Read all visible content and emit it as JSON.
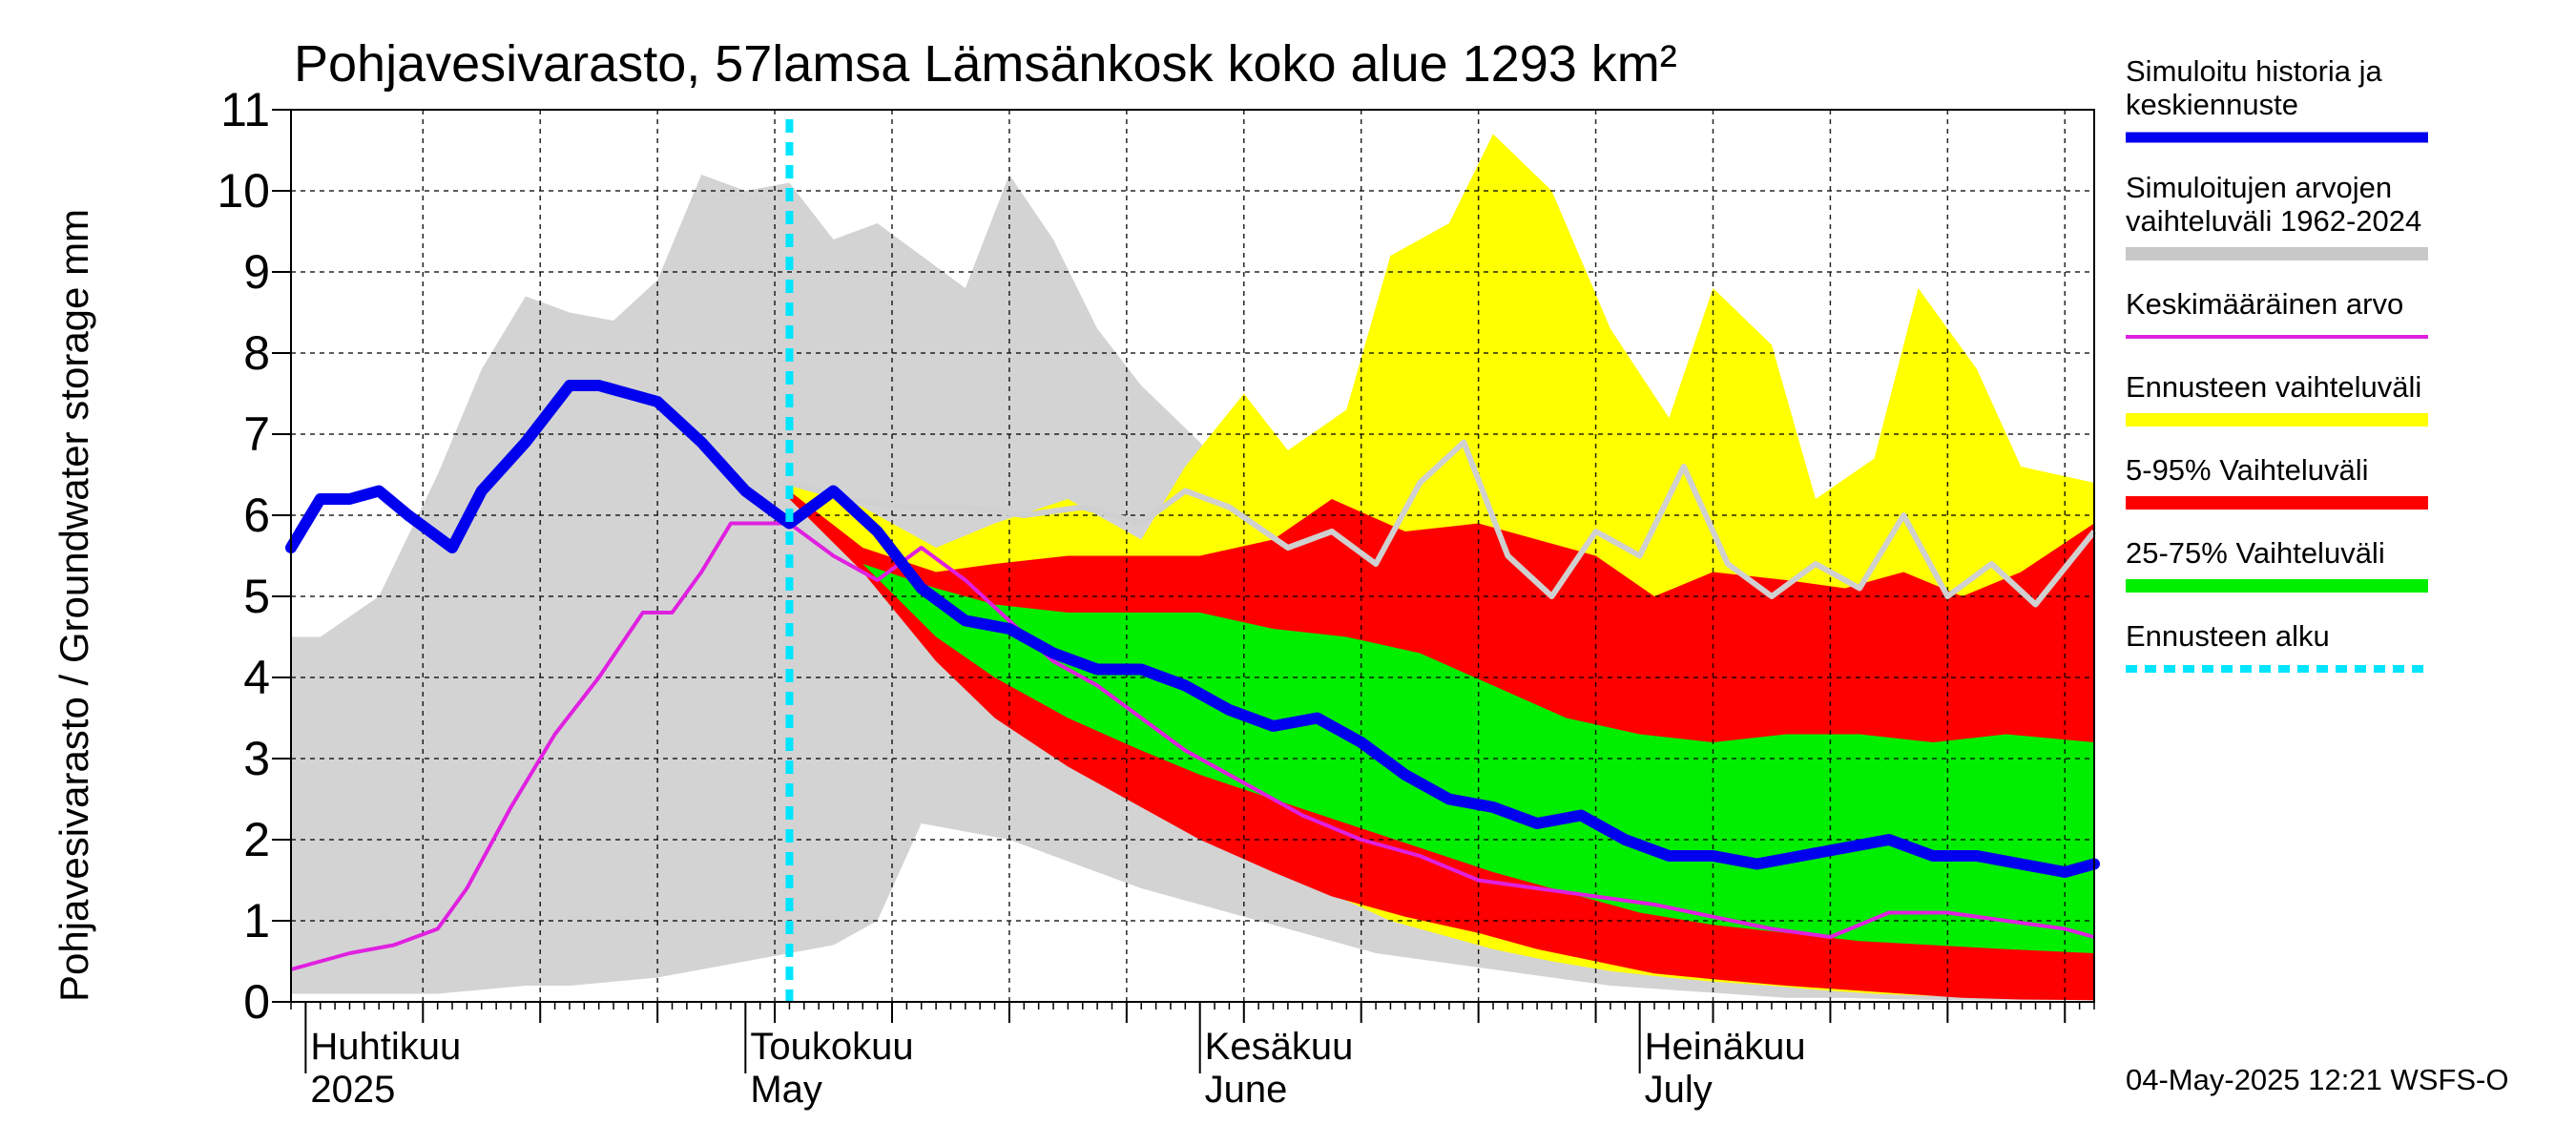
{
  "title": "Pohjavesivarasto, 57lamsa Lämsänkosk koko alue 1293 km²",
  "ylabel": "Pohjavesivarasto / Groundwater storage   mm",
  "footer": "04-May-2025 12:21 WSFS-O",
  "chart_data": {
    "type": "area",
    "x_start": "2025-03-31",
    "x_end": "2025-08-01",
    "forecast_start": "2025-05-04",
    "ylim": [
      0,
      11
    ],
    "y_ticks": [
      0,
      1,
      2,
      3,
      4,
      5,
      6,
      7,
      8,
      9,
      10,
      11
    ],
    "grid": true,
    "month_labels": [
      {
        "fi": "Huhtikuu",
        "en": "2025",
        "date": "2025-04-01"
      },
      {
        "fi": "Toukokuu",
        "en": "May",
        "date": "2025-05-01"
      },
      {
        "fi": "Kesäkuu",
        "en": "June",
        "date": "2025-06-01"
      },
      {
        "fi": "Heinäkuu",
        "en": "July",
        "date": "2025-07-01"
      }
    ],
    "legend": [
      {
        "label": "Simuloitu historia ja keskiennuste",
        "lines": [
          "Simuloitu historia ja",
          "keskiennuste"
        ],
        "color": "#0000ee",
        "kind": "line-thick"
      },
      {
        "label": "Simuloitujen arvojen vaihteluväli 1962-2024",
        "lines": [
          "Simuloitujen arvojen",
          "vaihteluväli 1962-2024"
        ],
        "color": "#c8c8c8",
        "kind": "band"
      },
      {
        "label": "Keskimääräinen arvo",
        "lines": [
          "Keskimääräinen arvo"
        ],
        "color": "#e020e0",
        "kind": "line"
      },
      {
        "label": "Ennusteen vaihteluväli",
        "lines": [
          "Ennusteen vaihteluväli"
        ],
        "color": "#ffff00",
        "kind": "band"
      },
      {
        "label": "5-95% Vaihteluväli",
        "lines": [
          "5-95% Vaihteluväli"
        ],
        "color": "#ff0000",
        "kind": "band"
      },
      {
        "label": "25-75% Vaihteluväli",
        "lines": [
          "25-75% Vaihteluväli"
        ],
        "color": "#00ee00",
        "kind": "band"
      },
      {
        "label": "Ennusteen alku",
        "lines": [
          "Ennusteen alku"
        ],
        "color": "#00e5ff",
        "kind": "dashed"
      }
    ],
    "series": {
      "hist_range": {
        "x": [
          "2025-03-31",
          "2025-04-02",
          "2025-04-06",
          "2025-04-10",
          "2025-04-13",
          "2025-04-16",
          "2025-04-19",
          "2025-04-22",
          "2025-04-25",
          "2025-04-28",
          "2025-05-01",
          "2025-05-04",
          "2025-05-07",
          "2025-05-10",
          "2025-05-13",
          "2025-05-16",
          "2025-05-19",
          "2025-05-22",
          "2025-05-25",
          "2025-05-28",
          "2025-06-01",
          "2025-06-05",
          "2025-06-09",
          "2025-06-13",
          "2025-06-17",
          "2025-06-21",
          "2025-06-25",
          "2025-06-29",
          "2025-07-03",
          "2025-07-07",
          "2025-07-11",
          "2025-07-15",
          "2025-07-19",
          "2025-07-23",
          "2025-07-27",
          "2025-08-01"
        ],
        "upper": [
          4.5,
          4.5,
          5.0,
          6.5,
          7.8,
          8.7,
          8.5,
          8.4,
          8.9,
          10.2,
          10.0,
          10.1,
          9.4,
          9.6,
          9.2,
          8.8,
          10.2,
          9.4,
          8.3,
          7.6,
          6.9,
          5.9,
          5.4,
          4.8,
          4.4,
          4.0,
          3.6,
          3.1,
          2.7,
          2.3,
          1.9,
          1.5,
          1.2,
          1.0,
          0.8,
          0.7
        ],
        "lower": [
          0.1,
          0.1,
          0.1,
          0.1,
          0.15,
          0.2,
          0.2,
          0.25,
          0.3,
          0.4,
          0.5,
          0.6,
          0.7,
          1.0,
          2.2,
          2.1,
          2.0,
          1.8,
          1.6,
          1.4,
          1.2,
          1.0,
          0.8,
          0.6,
          0.5,
          0.4,
          0.3,
          0.2,
          0.15,
          0.1,
          0.05,
          0.05,
          0.03,
          0.02,
          0.02,
          0.02
        ]
      },
      "forecast_range": {
        "x": [
          "2025-05-04",
          "2025-05-09",
          "2025-05-14",
          "2025-05-18",
          "2025-05-23",
          "2025-05-28",
          "2025-05-31",
          "2025-06-04",
          "2025-06-07",
          "2025-06-11",
          "2025-06-14",
          "2025-06-18",
          "2025-06-21",
          "2025-06-25",
          "2025-06-29",
          "2025-07-03",
          "2025-07-06",
          "2025-07-10",
          "2025-07-13",
          "2025-07-17",
          "2025-07-20",
          "2025-07-24",
          "2025-07-27",
          "2025-08-01"
        ],
        "upper": [
          6.4,
          6.1,
          5.6,
          5.9,
          6.2,
          5.7,
          6.6,
          7.5,
          6.8,
          7.3,
          9.2,
          9.6,
          10.7,
          10.0,
          8.3,
          7.2,
          8.8,
          8.1,
          6.2,
          6.7,
          8.8,
          7.8,
          6.6,
          6.4
        ],
        "lower": [
          6.2,
          5.5,
          4.5,
          3.8,
          3.2,
          2.7,
          2.3,
          1.9,
          1.55,
          1.25,
          1.0,
          0.8,
          0.65,
          0.5,
          0.38,
          0.3,
          0.25,
          0.2,
          0.15,
          0.1,
          0.08,
          0.06,
          0.05,
          0.05
        ]
      },
      "p5_95": {
        "x": [
          "2025-05-04",
          "2025-05-09",
          "2025-05-14",
          "2025-05-18",
          "2025-05-23",
          "2025-05-28",
          "2025-06-01",
          "2025-06-06",
          "2025-06-10",
          "2025-06-15",
          "2025-06-20",
          "2025-06-24",
          "2025-06-28",
          "2025-07-02",
          "2025-07-06",
          "2025-07-11",
          "2025-07-15",
          "2025-07-19",
          "2025-07-23",
          "2025-07-27",
          "2025-08-01"
        ],
        "upper": [
          6.3,
          5.6,
          5.3,
          5.4,
          5.5,
          5.5,
          5.5,
          5.7,
          6.2,
          5.8,
          5.9,
          5.7,
          5.5,
          5.0,
          5.3,
          5.2,
          5.1,
          5.3,
          5.0,
          5.3,
          5.9
        ],
        "lower": [
          6.2,
          5.3,
          4.2,
          3.5,
          2.9,
          2.4,
          2.0,
          1.6,
          1.3,
          1.05,
          0.85,
          0.65,
          0.5,
          0.35,
          0.28,
          0.2,
          0.15,
          0.1,
          0.05,
          0.03,
          0.02
        ]
      },
      "p25_75": {
        "x": [
          "2025-05-04",
          "2025-05-09",
          "2025-05-14",
          "2025-05-18",
          "2025-05-23",
          "2025-05-28",
          "2025-06-01",
          "2025-06-06",
          "2025-06-11",
          "2025-06-16",
          "2025-06-21",
          "2025-06-26",
          "2025-07-01",
          "2025-07-06",
          "2025-07-11",
          "2025-07-16",
          "2025-07-21",
          "2025-07-26",
          "2025-08-01"
        ],
        "upper": [
          6.2,
          5.4,
          5.1,
          4.9,
          4.8,
          4.8,
          4.8,
          4.6,
          4.5,
          4.3,
          3.9,
          3.5,
          3.3,
          3.2,
          3.3,
          3.3,
          3.2,
          3.3,
          3.2
        ],
        "lower": [
          6.2,
          5.4,
          4.5,
          4.0,
          3.5,
          3.1,
          2.8,
          2.5,
          2.2,
          1.9,
          1.6,
          1.35,
          1.1,
          0.95,
          0.85,
          0.75,
          0.7,
          0.65,
          0.6
        ]
      },
      "simulated": {
        "x": [
          "2025-03-31",
          "2025-04-02",
          "2025-04-04",
          "2025-04-06",
          "2025-04-08",
          "2025-04-11",
          "2025-04-13",
          "2025-04-16",
          "2025-04-19",
          "2025-04-21",
          "2025-04-23",
          "2025-04-25",
          "2025-04-28",
          "2025-05-01",
          "2025-05-04",
          "2025-05-07",
          "2025-05-10",
          "2025-05-13",
          "2025-05-16",
          "2025-05-19",
          "2025-05-22",
          "2025-05-25",
          "2025-05-28",
          "2025-05-31",
          "2025-06-03",
          "2025-06-06",
          "2025-06-09",
          "2025-06-12",
          "2025-06-15",
          "2025-06-18",
          "2025-06-21",
          "2025-06-24",
          "2025-06-27",
          "2025-06-30",
          "2025-07-03",
          "2025-07-06",
          "2025-07-09",
          "2025-07-12",
          "2025-07-15",
          "2025-07-18",
          "2025-07-21",
          "2025-07-24",
          "2025-07-27",
          "2025-07-30",
          "2025-08-01"
        ],
        "values": [
          5.6,
          6.2,
          6.2,
          6.3,
          6.0,
          5.6,
          6.3,
          6.9,
          7.6,
          7.6,
          7.5,
          7.4,
          6.9,
          6.3,
          5.9,
          6.3,
          5.8,
          5.1,
          4.7,
          4.6,
          4.3,
          4.1,
          4.1,
          3.9,
          3.6,
          3.4,
          3.5,
          3.2,
          2.8,
          2.5,
          2.4,
          2.2,
          2.3,
          2.0,
          1.8,
          1.8,
          1.7,
          1.8,
          1.9,
          2.0,
          1.8,
          1.8,
          1.7,
          1.6,
          1.7
        ]
      },
      "mean": {
        "x": [
          "2025-03-31",
          "2025-04-04",
          "2025-04-07",
          "2025-04-10",
          "2025-04-12",
          "2025-04-15",
          "2025-04-18",
          "2025-04-21",
          "2025-04-24",
          "2025-04-26",
          "2025-04-28",
          "2025-04-30",
          "2025-05-02",
          "2025-05-04",
          "2025-05-07",
          "2025-05-10",
          "2025-05-13",
          "2025-05-16",
          "2025-05-19",
          "2025-05-22",
          "2025-05-25",
          "2025-05-28",
          "2025-05-31",
          "2025-06-04",
          "2025-06-08",
          "2025-06-12",
          "2025-06-16",
          "2025-06-20",
          "2025-06-24",
          "2025-06-28",
          "2025-07-02",
          "2025-07-06",
          "2025-07-10",
          "2025-07-14",
          "2025-07-18",
          "2025-07-22",
          "2025-07-26",
          "2025-07-30",
          "2025-08-01"
        ],
        "values": [
          0.4,
          0.6,
          0.7,
          0.9,
          1.4,
          2.4,
          3.3,
          4.0,
          4.8,
          4.8,
          5.3,
          5.9,
          5.9,
          5.9,
          5.5,
          5.2,
          5.6,
          5.2,
          4.7,
          4.2,
          3.9,
          3.5,
          3.1,
          2.7,
          2.3,
          2.0,
          1.8,
          1.5,
          1.4,
          1.3,
          1.2,
          1.05,
          0.9,
          0.8,
          1.1,
          1.1,
          1.0,
          0.9,
          0.8
        ]
      },
      "median_forecast": {
        "x": [
          "2025-05-04",
          "2025-05-08",
          "2025-05-12",
          "2025-05-16",
          "2025-05-20",
          "2025-05-24",
          "2025-05-28",
          "2025-05-31",
          "2025-06-03",
          "2025-06-07",
          "2025-06-10",
          "2025-06-13",
          "2025-06-16",
          "2025-06-19",
          "2025-06-22",
          "2025-06-25",
          "2025-06-28",
          "2025-07-01",
          "2025-07-04",
          "2025-07-07",
          "2025-07-10",
          "2025-07-13",
          "2025-07-16",
          "2025-07-19",
          "2025-07-22",
          "2025-07-25",
          "2025-07-28",
          "2025-08-01"
        ],
        "values": [
          6.4,
          6.2,
          6.1,
          6.1,
          6.0,
          6.1,
          5.9,
          6.3,
          6.1,
          5.6,
          5.8,
          5.4,
          6.4,
          6.9,
          5.5,
          5.0,
          5.8,
          5.5,
          6.6,
          5.4,
          5.0,
          5.4,
          5.1,
          6.0,
          5.0,
          5.4,
          4.9,
          5.8
        ]
      }
    }
  }
}
